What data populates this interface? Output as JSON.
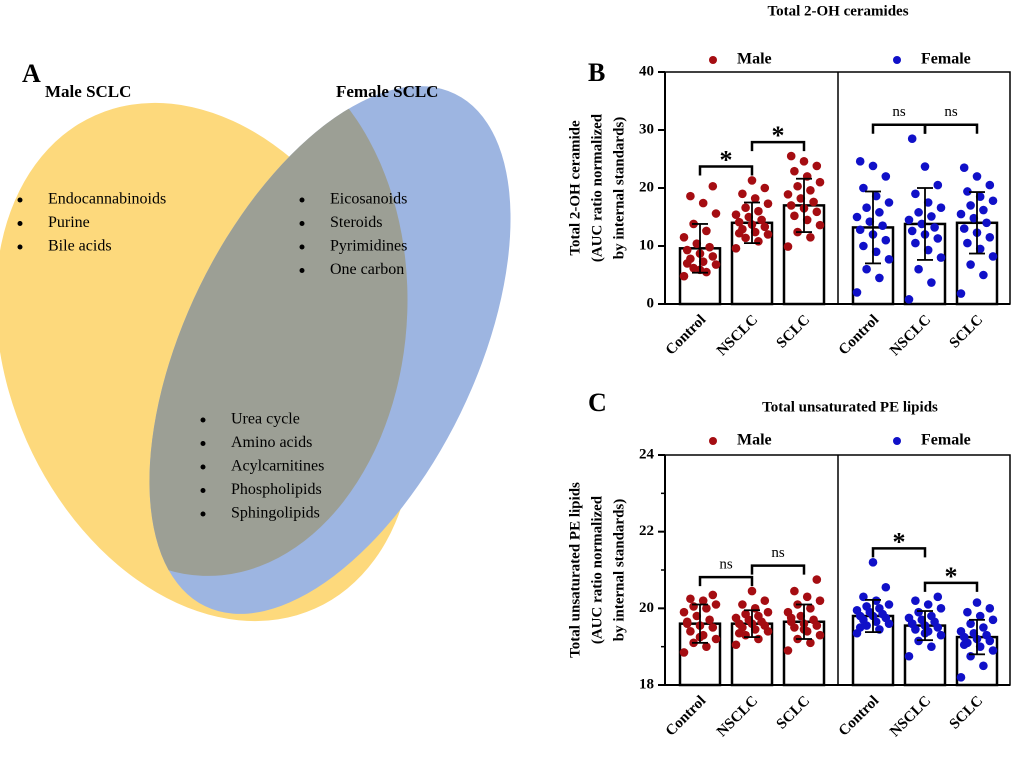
{
  "panels": [
    "A",
    "B",
    "C"
  ],
  "venn": {
    "male": {
      "title": "Male SCLC",
      "items": [
        "Endocannabinoids",
        "Purine",
        "Bile acids"
      ]
    },
    "female": {
      "title": "Female SCLC",
      "items": [
        "Eicosanoids",
        "Steroids",
        "Pyrimidines",
        "One carbon"
      ]
    },
    "shared": {
      "items": [
        "Urea cycle",
        "Amino acids",
        "Acylcarnitines",
        "Phospholipids",
        "Sphingolipids"
      ]
    }
  },
  "chart_data": [
    {
      "type": "bar",
      "title": "Total 2-OH ceramides",
      "ylabel": [
        "Total 2-OH ceramide",
        "(AUC ratio normalized",
        "by internal standards)"
      ],
      "categories": [
        "Control",
        "NSCLC",
        "SCLC"
      ],
      "ylim": [
        0,
        40
      ],
      "yticks": [
        0,
        10,
        20,
        30,
        40
      ],
      "series": [
        {
          "name": "Male",
          "color": "#a50d12",
          "values": [
            9.6,
            14.0,
            17.0
          ],
          "errors": [
            4.2,
            3.5,
            4.6
          ],
          "points": [
            [
              4.8,
              5.5,
              6.2,
              6.8,
              7.3,
              7.8,
              8.2,
              8.7,
              9.3,
              9.8,
              10.4,
              11.5,
              12.6,
              13.8,
              15.6,
              17.4,
              18.6,
              20.3,
              5.9,
              7.0
            ],
            [
              9.6,
              10.8,
              11.4,
              12.0,
              12.4,
              12.9,
              13.3,
              13.7,
              14.1,
              14.5,
              15.0,
              15.4,
              16.0,
              16.6,
              17.3,
              18.2,
              19.0,
              20.0,
              21.3,
              12.2
            ],
            [
              9.9,
              11.5,
              12.4,
              13.6,
              14.5,
              15.2,
              15.9,
              16.5,
              17.0,
              17.6,
              18.2,
              18.9,
              19.6,
              20.3,
              21.0,
              22.0,
              22.9,
              23.8,
              24.6,
              25.5
            ]
          ],
          "comparisons": [
            {
              "between": [
                0,
                1
              ],
              "label": "*"
            },
            {
              "between": [
                1,
                2
              ],
              "label": "*"
            }
          ]
        },
        {
          "name": "Female",
          "color": "#1010c8",
          "values": [
            13.2,
            13.8,
            14.0
          ],
          "errors": [
            6.2,
            6.2,
            5.3
          ],
          "points": [
            [
              2.0,
              4.5,
              6.0,
              7.7,
              9.0,
              10.0,
              11.0,
              12.0,
              12.8,
              13.5,
              14.2,
              15.0,
              15.8,
              16.6,
              17.5,
              18.6,
              20.0,
              22.0,
              23.8,
              24.6
            ],
            [
              0.8,
              3.7,
              6.0,
              8.0,
              9.3,
              10.5,
              11.3,
              12.0,
              12.6,
              13.2,
              13.8,
              14.5,
              15.1,
              15.8,
              16.6,
              17.5,
              19.0,
              20.5,
              23.7,
              28.5
            ],
            [
              1.8,
              5.0,
              6.8,
              8.2,
              9.5,
              10.5,
              11.5,
              12.3,
              13.0,
              14.0,
              14.8,
              15.5,
              16.2,
              17.0,
              17.8,
              18.5,
              19.4,
              20.5,
              22.0,
              23.5
            ]
          ],
          "comparisons": [
            {
              "between": [
                0,
                1
              ],
              "label": "ns"
            },
            {
              "between": [
                1,
                2
              ],
              "label": "ns"
            }
          ]
        }
      ]
    },
    {
      "type": "bar",
      "title": "Total unsaturated PE lipids",
      "ylabel": [
        "Total unsaturated PE lipids",
        "(AUC ratio normalized",
        "by internal standards)"
      ],
      "categories": [
        "Control",
        "NSCLC",
        "SCLC"
      ],
      "ylim": [
        18,
        24
      ],
      "yticks": [
        18,
        20,
        22,
        24
      ],
      "yminorticks": [
        19,
        21,
        23
      ],
      "series": [
        {
          "name": "Male",
          "color": "#a50d12",
          "values": [
            19.6,
            19.6,
            19.65
          ],
          "errors": [
            0.5,
            0.35,
            0.45
          ],
          "points": [
            [
              18.85,
              19.0,
              19.1,
              19.2,
              19.3,
              19.4,
              19.5,
              19.55,
              19.6,
              19.7,
              19.8,
              19.9,
              20.0,
              20.05,
              20.1,
              20.2,
              20.25,
              20.35,
              19.25,
              19.65
            ],
            [
              19.05,
              19.2,
              19.3,
              19.4,
              19.45,
              19.5,
              19.55,
              19.6,
              19.6,
              19.65,
              19.7,
              19.75,
              19.8,
              19.85,
              19.9,
              20.0,
              20.1,
              20.2,
              20.45,
              19.35
            ],
            [
              18.9,
              19.1,
              19.2,
              19.3,
              19.4,
              19.5,
              19.55,
              19.6,
              19.65,
              19.7,
              19.8,
              19.9,
              20.0,
              20.1,
              20.2,
              20.3,
              20.45,
              20.75,
              19.45,
              19.75
            ]
          ],
          "comparisons": [
            {
              "between": [
                0,
                1
              ],
              "label": "ns"
            },
            {
              "between": [
                1,
                2
              ],
              "label": "ns"
            }
          ]
        },
        {
          "name": "Female",
          "color": "#1010c8",
          "values": [
            19.8,
            19.55,
            19.25
          ],
          "errors": [
            0.42,
            0.38,
            0.45
          ],
          "points": [
            [
              19.35,
              19.45,
              19.55,
              19.6,
              19.65,
              19.7,
              19.75,
              19.8,
              19.8,
              19.85,
              19.9,
              19.95,
              20.0,
              20.05,
              20.1,
              20.2,
              20.3,
              20.55,
              21.2,
              19.5
            ],
            [
              18.75,
              19.0,
              19.15,
              19.3,
              19.4,
              19.45,
              19.5,
              19.55,
              19.6,
              19.65,
              19.7,
              19.75,
              19.8,
              19.9,
              20.0,
              20.1,
              20.2,
              20.3,
              19.35,
              19.6
            ],
            [
              18.2,
              18.5,
              18.75,
              18.9,
              19.0,
              19.1,
              19.15,
              19.2,
              19.25,
              19.3,
              19.35,
              19.4,
              19.5,
              19.6,
              19.7,
              19.8,
              19.9,
              20.0,
              20.15,
              19.05
            ]
          ],
          "comparisons": [
            {
              "between": [
                0,
                1
              ],
              "label": "*"
            },
            {
              "between": [
                1,
                2
              ],
              "label": "*"
            }
          ]
        }
      ]
    }
  ]
}
